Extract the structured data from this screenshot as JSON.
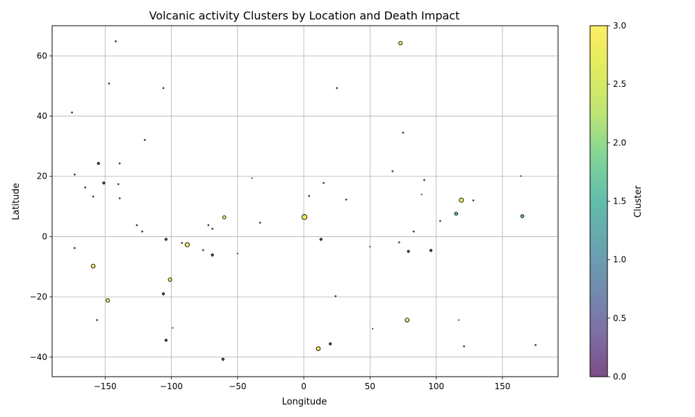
{
  "chart_data": {
    "type": "scatter",
    "title": "Volcanic activity Clusters by Location and Death Impact",
    "xlabel": "Longitude",
    "ylabel": "Latitude",
    "xlim": [
      -190,
      192
    ],
    "ylim": [
      -46.5,
      70
    ],
    "xticks": [
      -150,
      -100,
      -50,
      0,
      50,
      100,
      150
    ],
    "yticks": [
      -40,
      -20,
      0,
      20,
      40,
      60
    ],
    "grid": true,
    "colorbar": {
      "label": "Cluster",
      "range": [
        0,
        3
      ],
      "ticks": [
        0.0,
        0.5,
        1.0,
        1.5,
        2.0,
        2.5,
        3.0
      ],
      "colormap": "viridis",
      "alpha": 0.7
    },
    "points": [
      {
        "x": -142,
        "y": 64.8,
        "cluster": 0,
        "size": 1
      },
      {
        "x": -147,
        "y": 50.8,
        "cluster": 0,
        "size": 1
      },
      {
        "x": -106,
        "y": 49.3,
        "cluster": 0,
        "size": 1
      },
      {
        "x": 25,
        "y": 49.3,
        "cluster": 0,
        "size": 1
      },
      {
        "x": -175,
        "y": 41.2,
        "cluster": 0,
        "size": 1
      },
      {
        "x": 75,
        "y": 34.5,
        "cluster": 0,
        "size": 1
      },
      {
        "x": -120,
        "y": 32.1,
        "cluster": 0,
        "size": 1
      },
      {
        "x": -155,
        "y": 24.3,
        "cluster": 0,
        "size": 2
      },
      {
        "x": -139,
        "y": 24.3,
        "cluster": 0,
        "size": 1
      },
      {
        "x": 67,
        "y": 21.7,
        "cluster": 0,
        "size": 1
      },
      {
        "x": -173,
        "y": 20.6,
        "cluster": 0,
        "size": 1
      },
      {
        "x": -39,
        "y": 19.4,
        "cluster": 0,
        "size": 0.5
      },
      {
        "x": 91,
        "y": 18.8,
        "cluster": 0,
        "size": 1
      },
      {
        "x": 164,
        "y": 20.1,
        "cluster": 0,
        "size": 0.5
      },
      {
        "x": -151,
        "y": 17.8,
        "cluster": 0,
        "size": 2
      },
      {
        "x": 15,
        "y": 17.8,
        "cluster": 0,
        "size": 1
      },
      {
        "x": -140,
        "y": 17.4,
        "cluster": 0,
        "size": 1
      },
      {
        "x": -165,
        "y": 16.3,
        "cluster": 0,
        "size": 1
      },
      {
        "x": 89,
        "y": 14.0,
        "cluster": 0,
        "size": 0.5
      },
      {
        "x": -159,
        "y": 13.3,
        "cluster": 0,
        "size": 1
      },
      {
        "x": 4,
        "y": 13.5,
        "cluster": 0,
        "size": 1
      },
      {
        "x": -139,
        "y": 12.7,
        "cluster": 0,
        "size": 1
      },
      {
        "x": 32,
        "y": 12.3,
        "cluster": 0,
        "size": 1
      },
      {
        "x": 128,
        "y": 12.0,
        "cluster": 0,
        "size": 1
      },
      {
        "x": 103,
        "y": 5.2,
        "cluster": 0,
        "size": 1
      },
      {
        "x": -33,
        "y": 4.6,
        "cluster": 0,
        "size": 1
      },
      {
        "x": -126,
        "y": 3.8,
        "cluster": 0,
        "size": 1
      },
      {
        "x": -72,
        "y": 3.8,
        "cluster": 0,
        "size": 1
      },
      {
        "x": -69,
        "y": 2.6,
        "cluster": 0,
        "size": 1
      },
      {
        "x": -122,
        "y": 1.7,
        "cluster": 0,
        "size": 1
      },
      {
        "x": 83,
        "y": 1.7,
        "cluster": 0,
        "size": 1
      },
      {
        "x": -104,
        "y": -0.9,
        "cluster": 0,
        "size": 2
      },
      {
        "x": 13,
        "y": -0.9,
        "cluster": 0,
        "size": 2
      },
      {
        "x": -92,
        "y": -2.1,
        "cluster": 0,
        "size": 1
      },
      {
        "x": 72,
        "y": -1.9,
        "cluster": 0,
        "size": 1
      },
      {
        "x": 50,
        "y": -3.3,
        "cluster": 0,
        "size": 0.5
      },
      {
        "x": -173,
        "y": -3.8,
        "cluster": 0,
        "size": 1
      },
      {
        "x": -76,
        "y": -4.5,
        "cluster": 0,
        "size": 1
      },
      {
        "x": 79,
        "y": -4.9,
        "cluster": 0,
        "size": 2
      },
      {
        "x": 96,
        "y": -4.6,
        "cluster": 0,
        "size": 2
      },
      {
        "x": -50,
        "y": -5.6,
        "cluster": 0,
        "size": 0.5
      },
      {
        "x": -69,
        "y": -6.1,
        "cluster": 0,
        "size": 2
      },
      {
        "x": -106,
        "y": -19.0,
        "cluster": 0,
        "size": 2
      },
      {
        "x": 24,
        "y": -19.8,
        "cluster": 0,
        "size": 1
      },
      {
        "x": -156,
        "y": -27.7,
        "cluster": 0,
        "size": 1
      },
      {
        "x": 117,
        "y": -27.7,
        "cluster": 0,
        "size": 0.5
      },
      {
        "x": -99,
        "y": -30.3,
        "cluster": 0,
        "size": 0.5
      },
      {
        "x": 52,
        "y": -30.6,
        "cluster": 0,
        "size": 0.5
      },
      {
        "x": -104,
        "y": -34.4,
        "cluster": 0,
        "size": 2
      },
      {
        "x": 20,
        "y": -35.6,
        "cluster": 0,
        "size": 2
      },
      {
        "x": 121,
        "y": -36.4,
        "cluster": 0,
        "size": 1
      },
      {
        "x": 175,
        "y": -36.0,
        "cluster": 0,
        "size": 1
      },
      {
        "x": -61,
        "y": -40.7,
        "cluster": 0,
        "size": 2
      },
      {
        "x": 115,
        "y": 7.6,
        "cluster": 1.5,
        "size": 4
      },
      {
        "x": 165,
        "y": 6.8,
        "cluster": 1.5,
        "size": 4
      },
      {
        "x": 73,
        "y": 64.2,
        "cluster": 3,
        "size": 5
      },
      {
        "x": 119,
        "y": 12.1,
        "cluster": 3,
        "size": 7
      },
      {
        "x": -60,
        "y": 6.4,
        "cluster": 3,
        "size": 4
      },
      {
        "x": 0.5,
        "y": 6.5,
        "cluster": 3,
        "size": 10
      },
      {
        "x": -88,
        "y": -2.7,
        "cluster": 3,
        "size": 7
      },
      {
        "x": -159,
        "y": -9.8,
        "cluster": 3,
        "size": 6
      },
      {
        "x": -101,
        "y": -14.3,
        "cluster": 3,
        "size": 5
      },
      {
        "x": -148,
        "y": -21.2,
        "cluster": 3,
        "size": 5
      },
      {
        "x": 78,
        "y": -27.7,
        "cluster": 3,
        "size": 6
      },
      {
        "x": 11,
        "y": -37.2,
        "cluster": 3,
        "size": 6
      }
    ]
  }
}
